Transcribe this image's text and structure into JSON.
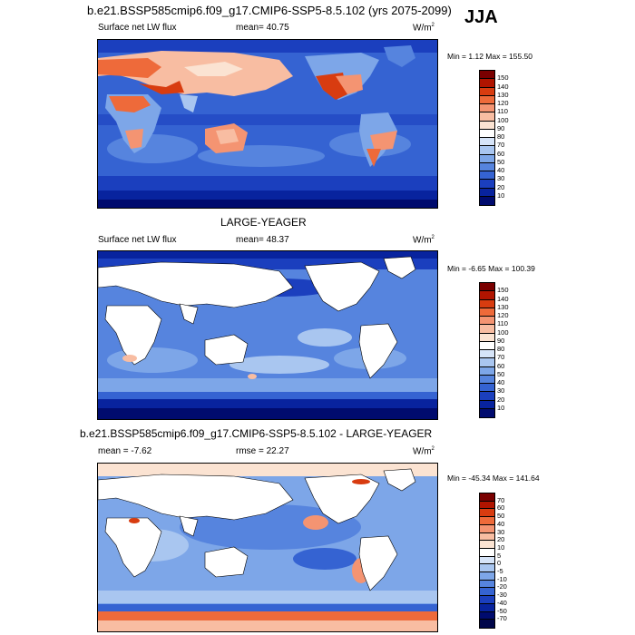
{
  "season": "JJA",
  "panels": [
    {
      "title": "b.e21.BSSP585cmip6.f09_g17.CMIP6-SSP5-8.5.102 (yrs 2075-2099)",
      "left": "Surface net LW flux",
      "center": "mean=  40.75",
      "unit": "W/m",
      "unit_sup": "2",
      "stats": "Min =   1.12 Max = 155.50",
      "colorbar_labels": [
        "150",
        "140",
        "130",
        "120",
        "110",
        "100",
        "90",
        "80",
        "70",
        "60",
        "50",
        "40",
        "30",
        "20",
        "10"
      ]
    },
    {
      "title": "LARGE-YEAGER",
      "left": "Surface net LW flux",
      "center": "mean=  48.37",
      "unit": "W/m",
      "unit_sup": "2",
      "stats": "Min =  -6.65 Max = 100.39",
      "colorbar_labels": [
        "150",
        "140",
        "130",
        "120",
        "110",
        "100",
        "90",
        "80",
        "70",
        "60",
        "50",
        "40",
        "30",
        "20",
        "10"
      ]
    },
    {
      "title": "b.e21.BSSP585cmip6.f09_g17.CMIP6-SSP5-8.5.102 - LARGE-YEAGER",
      "left": "mean =  -7.62",
      "center": "rmse =  22.27",
      "unit": "W/m",
      "unit_sup": "2",
      "stats": "Min = -45.34 Max = 141.64",
      "colorbar_labels": [
        "70",
        "60",
        "50",
        "40",
        "30",
        "20",
        "10",
        "5",
        "0",
        "-5",
        "-10",
        "-20",
        "-30",
        "-40",
        "-50",
        "-70"
      ]
    }
  ],
  "colors": {
    "abs_scale": [
      "#7a0000",
      "#b01400",
      "#d83c10",
      "#ee6a3a",
      "#f49472",
      "#f8bda2",
      "#fbe3d2",
      "#ffffff",
      "#d6e4f8",
      "#a9c6f0",
      "#7da6e8",
      "#5684de",
      "#3563d2",
      "#1b3fbe",
      "#08239e",
      "#000b6e"
    ],
    "diff_scale": [
      "#7a0000",
      "#b01400",
      "#d83c10",
      "#ee6a3a",
      "#f49472",
      "#f8bda2",
      "#fbe3d2",
      "#ffffff",
      "#d6e4f8",
      "#a9c6f0",
      "#7da6e8",
      "#5684de",
      "#3563d2",
      "#1b3fbe",
      "#08239e",
      "#000b6e",
      "#00064a"
    ],
    "land": "#ffffff",
    "coast": "#000000"
  }
}
